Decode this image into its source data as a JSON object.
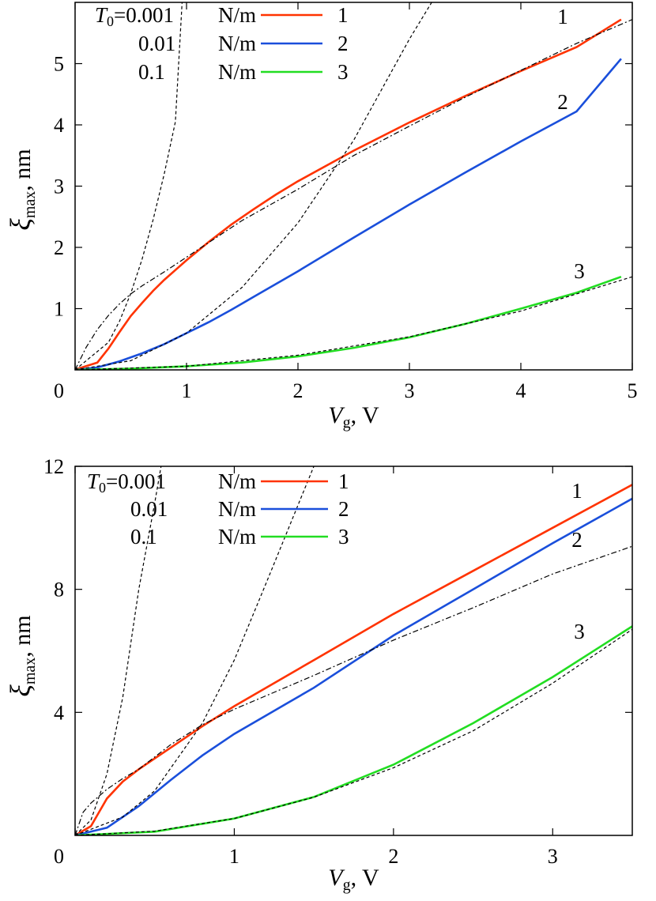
{
  "chart_data": [
    {
      "type": "line",
      "xlabel": "V",
      "xlabel_sub": "g",
      "xlabel_unit": ", V",
      "ylabel": "ξ",
      "ylabel_sub": "max",
      "ylabel_unit": ", nm",
      "xlim": [
        0,
        5
      ],
      "ylim": [
        0,
        6
      ],
      "xticks": [
        "0",
        "1",
        "2",
        "3",
        "4",
        "5"
      ],
      "yticks": [
        "1",
        "2",
        "3",
        "4",
        "5"
      ],
      "legend_placement": "top-left",
      "legend": {
        "prefix": "T",
        "prefix_sub": "0",
        "rows": [
          {
            "value": "=0.001",
            "unit": "N/m",
            "label": "1"
          },
          {
            "value": "0.01",
            "unit": "N/m",
            "label": "2"
          },
          {
            "value": "0.1",
            "unit": "N/m",
            "label": "3"
          }
        ]
      },
      "series": [
        {
          "label": "1",
          "color": "#ff3300",
          "style": "solid",
          "x": [
            0.01,
            0.2,
            0.3,
            0.4,
            0.5,
            0.6,
            0.7,
            0.8,
            0.9,
            1.0,
            1.2,
            1.4,
            1.6,
            1.8,
            2.0,
            2.5,
            3.0,
            3.5,
            4.0,
            4.5,
            4.9
          ],
          "y": [
            0.01,
            0.12,
            0.35,
            0.62,
            0.88,
            1.09,
            1.29,
            1.47,
            1.63,
            1.79,
            2.09,
            2.37,
            2.62,
            2.86,
            3.08,
            3.58,
            4.04,
            4.47,
            4.88,
            5.27,
            5.72
          ]
        },
        {
          "label": "2",
          "color": "#1a4fdb",
          "style": "solid",
          "x": [
            0,
            0.2,
            0.4,
            0.6,
            0.8,
            1.0,
            1.2,
            1.4,
            1.6,
            1.8,
            2.0,
            2.5,
            3.0,
            3.5,
            4.0,
            4.5,
            4.9
          ],
          "y": [
            0,
            0.04,
            0.14,
            0.27,
            0.42,
            0.6,
            0.78,
            0.98,
            1.19,
            1.4,
            1.61,
            2.16,
            2.7,
            3.22,
            3.73,
            4.22,
            5.08
          ]
        },
        {
          "label": "3",
          "color": "#22dd22",
          "style": "solid",
          "x": [
            0,
            0.5,
            1.0,
            1.5,
            2.0,
            2.5,
            3.0,
            3.5,
            4.0,
            4.5,
            4.9
          ],
          "y": [
            0,
            0.02,
            0.06,
            0.12,
            0.22,
            0.36,
            0.53,
            0.75,
            1.0,
            1.26,
            1.52
          ]
        },
        {
          "label": "",
          "color": "#000000",
          "style": "dashed",
          "x": [
            0,
            0.3,
            0.4,
            0.5,
            0.6,
            0.7,
            0.8,
            0.9,
            0.96
          ],
          "y": [
            0,
            0.45,
            0.8,
            1.25,
            1.8,
            2.45,
            3.2,
            4.05,
            6.0
          ]
        },
        {
          "label": "",
          "color": "#000000",
          "style": "dashed",
          "x": [
            0,
            0.5,
            1.0,
            1.5,
            2.0,
            2.5,
            3.0,
            3.2
          ],
          "y": [
            0,
            0.15,
            0.6,
            1.35,
            2.4,
            3.75,
            5.4,
            6.0
          ]
        },
        {
          "label": "",
          "color": "#000000",
          "style": "dashed",
          "x": [
            0,
            1.0,
            2.0,
            3.0,
            4.0,
            5.0
          ],
          "y": [
            0,
            0.06,
            0.24,
            0.54,
            0.96,
            1.52
          ]
        },
        {
          "label": "",
          "color": "#000000",
          "style": "dashdot",
          "x": [
            0,
            0.1,
            0.2,
            0.3,
            0.4,
            0.5,
            0.6,
            0.8,
            1.0,
            1.5,
            2.0,
            2.5,
            3.0,
            3.5,
            4.0,
            4.5,
            5.0
          ],
          "y": [
            0,
            0.37,
            0.66,
            0.89,
            1.08,
            1.24,
            1.37,
            1.6,
            1.84,
            2.44,
            2.95,
            3.5,
            3.98,
            4.45,
            4.89,
            5.33,
            5.72
          ]
        }
      ],
      "curve_labels": [
        "1",
        "2",
        "3"
      ]
    },
    {
      "type": "line",
      "xlabel": "V",
      "xlabel_sub": "g",
      "xlabel_unit": ", V",
      "ylabel": "ξ",
      "ylabel_sub": "max",
      "ylabel_unit": ", nm",
      "xlim": [
        0,
        3.5
      ],
      "ylim": [
        0,
        12
      ],
      "xticks": [
        "0",
        "1",
        "2",
        "3"
      ],
      "yticks": [
        "4",
        "8",
        "12"
      ],
      "legend_placement": "top-left",
      "legend": {
        "prefix": "T",
        "prefix_sub": "0",
        "rows": [
          {
            "value": "=0.001",
            "unit": "N/m",
            "label": "1"
          },
          {
            "value": "0.01",
            "unit": "N/m",
            "label": "2"
          },
          {
            "value": "0.1",
            "unit": "N/m",
            "label": "3"
          }
        ]
      },
      "series": [
        {
          "label": "1",
          "color": "#ff3300",
          "style": "solid",
          "x": [
            0,
            0.1,
            0.2,
            0.3,
            0.4,
            0.5,
            0.6,
            0.8,
            1.0,
            1.5,
            2.0,
            2.5,
            3.0,
            3.5
          ],
          "y": [
            0,
            0.3,
            1.2,
            1.75,
            2.15,
            2.5,
            2.85,
            3.55,
            4.2,
            5.7,
            7.2,
            8.6,
            10.0,
            11.4
          ]
        },
        {
          "label": "2",
          "color": "#1a4fdb",
          "style": "solid",
          "x": [
            0,
            0.2,
            0.4,
            0.6,
            0.8,
            1.0,
            1.2,
            1.5,
            2.0,
            2.5,
            3.0,
            3.5
          ],
          "y": [
            0,
            0.25,
            0.95,
            1.8,
            2.6,
            3.3,
            3.9,
            4.8,
            6.5,
            8.0,
            9.5,
            10.95
          ]
        },
        {
          "label": "3",
          "color": "#22dd22",
          "style": "solid",
          "x": [
            0,
            0.5,
            1.0,
            1.5,
            2.0,
            2.5,
            3.0,
            3.5
          ],
          "y": [
            0,
            0.12,
            0.55,
            1.25,
            2.3,
            3.65,
            5.15,
            6.8
          ]
        },
        {
          "label": "",
          "color": "#000000",
          "style": "dashed",
          "x": [
            0,
            0.1,
            0.2,
            0.3,
            0.4,
            0.5,
            0.54
          ],
          "y": [
            0,
            0.5,
            2.0,
            4.5,
            8.0,
            10.8,
            12.0
          ]
        },
        {
          "label": "",
          "color": "#000000",
          "style": "dashed",
          "x": [
            0,
            0.3,
            0.5,
            0.8,
            1.0,
            1.2,
            1.5
          ],
          "y": [
            0,
            0.6,
            1.45,
            3.65,
            5.7,
            8.2,
            12.0
          ]
        },
        {
          "label": "",
          "color": "#000000",
          "style": "dashed",
          "x": [
            0,
            0.5,
            1.0,
            1.5,
            2.0,
            2.5,
            3.0,
            3.5
          ],
          "y": [
            0,
            0.14,
            0.55,
            1.24,
            2.2,
            3.4,
            4.95,
            6.7
          ]
        },
        {
          "label": "",
          "color": "#000000",
          "style": "dashdot",
          "x": [
            0,
            0.05,
            0.1,
            0.2,
            0.3,
            0.4,
            0.6,
            0.8,
            1.0,
            1.5,
            2.0,
            2.5,
            3.0,
            3.5
          ],
          "y": [
            0,
            0.75,
            1.05,
            1.5,
            1.85,
            2.15,
            2.95,
            3.6,
            4.1,
            5.2,
            6.35,
            7.4,
            8.5,
            9.4
          ]
        }
      ],
      "curve_labels": [
        "1",
        "2",
        "3"
      ]
    }
  ]
}
